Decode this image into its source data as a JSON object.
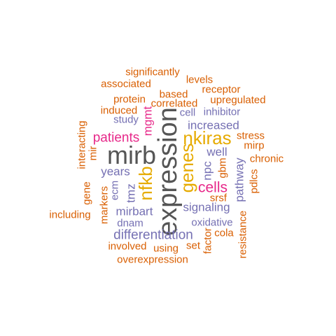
{
  "colors": {
    "orange": "#d95f02",
    "purple": "#7570b3",
    "magenta": "#e7298a",
    "gold": "#e6ab02",
    "gray": "#555555"
  },
  "words": [
    {
      "text": "significantly",
      "color": "orange"
    },
    {
      "text": "levels",
      "color": "orange"
    },
    {
      "text": "associated",
      "color": "orange"
    },
    {
      "text": "receptor",
      "color": "orange"
    },
    {
      "text": "based",
      "color": "orange"
    },
    {
      "text": "protein",
      "color": "orange"
    },
    {
      "text": "upregulated",
      "color": "orange"
    },
    {
      "text": "correlated",
      "color": "orange"
    },
    {
      "text": "induced",
      "color": "orange"
    },
    {
      "text": "cell",
      "color": "purple"
    },
    {
      "text": "inhibitor",
      "color": "purple"
    },
    {
      "text": "study",
      "color": "purple"
    },
    {
      "text": "mgmt",
      "color": "magenta"
    },
    {
      "text": "increased",
      "color": "purple"
    },
    {
      "text": "interacting",
      "color": "orange"
    },
    {
      "text": "stress",
      "color": "orange"
    },
    {
      "text": "patients",
      "color": "magenta"
    },
    {
      "text": "nkiras",
      "color": "gold"
    },
    {
      "text": "mirp",
      "color": "orange"
    },
    {
      "text": "mir",
      "color": "orange"
    },
    {
      "text": "mirb",
      "color": "gray"
    },
    {
      "text": "expression",
      "color": "gray"
    },
    {
      "text": "well",
      "color": "purple"
    },
    {
      "text": "chronic",
      "color": "orange"
    },
    {
      "text": "genes",
      "color": "gold"
    },
    {
      "text": "npc",
      "color": "purple"
    },
    {
      "text": "gbm",
      "color": "orange"
    },
    {
      "text": "years",
      "color": "purple"
    },
    {
      "text": "nfkb",
      "color": "gold"
    },
    {
      "text": "pathway",
      "color": "purple"
    },
    {
      "text": "pdlcs",
      "color": "orange"
    },
    {
      "text": "gene",
      "color": "orange"
    },
    {
      "text": "ecm",
      "color": "purple"
    },
    {
      "text": "tmz",
      "color": "purple"
    },
    {
      "text": "cells",
      "color": "magenta"
    },
    {
      "text": "srsf",
      "color": "orange"
    },
    {
      "text": "including",
      "color": "orange"
    },
    {
      "text": "markers",
      "color": "orange"
    },
    {
      "text": "mirbart",
      "color": "purple"
    },
    {
      "text": "signaling",
      "color": "purple"
    },
    {
      "text": "dnam",
      "color": "purple"
    },
    {
      "text": "oxidative",
      "color": "purple"
    },
    {
      "text": "cola",
      "color": "orange"
    },
    {
      "text": "differentiation",
      "color": "purple"
    },
    {
      "text": "resistance",
      "color": "orange"
    },
    {
      "text": "factor",
      "color": "orange"
    },
    {
      "text": "involved",
      "color": "orange"
    },
    {
      "text": "using",
      "color": "orange"
    },
    {
      "text": "set",
      "color": "orange"
    },
    {
      "text": "overexpression",
      "color": "orange"
    }
  ]
}
